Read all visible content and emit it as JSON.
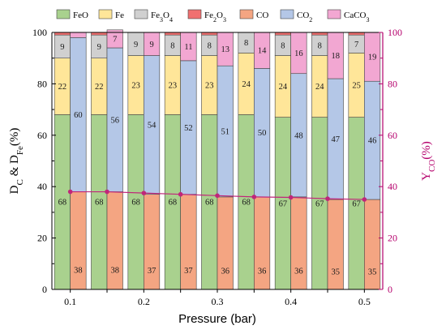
{
  "chart_data": {
    "type": "bar",
    "categories": [
      "0.1",
      "",
      "0.2",
      "",
      "0.3",
      "",
      "0.4",
      "",
      "0.5"
    ],
    "xlabel": "Pressure (bar)",
    "ylabel_left": "D_C & D_Fe(%)",
    "ylabel_right": "Y_CO(%)",
    "ylim_left": [
      0,
      100
    ],
    "ylim_right": [
      0,
      100
    ],
    "left_ticks": [
      "0",
      "20",
      "40",
      "60",
      "80",
      "100"
    ],
    "right_ticks": [
      "0",
      "20",
      "40",
      "60",
      "80",
      "100"
    ],
    "x_ticks": [
      "0.1",
      "0.2",
      "0.3",
      "0.4",
      "0.5"
    ],
    "legend_position": "top",
    "grid": false,
    "legend": [
      {
        "key": "FeO",
        "text": "FeO",
        "sub": ""
      },
      {
        "key": "Fe",
        "text": "Fe",
        "sub": ""
      },
      {
        "key": "Fe3O4",
        "text": "Fe",
        "sub": "3",
        "text2": "O",
        "sub2": "4"
      },
      {
        "key": "Fe2O3",
        "text": "Fe",
        "sub": "2",
        "text2": "O",
        "sub2": "3"
      },
      {
        "key": "CO",
        "text": "CO",
        "sub": ""
      },
      {
        "key": "CO2",
        "text": "CO",
        "sub": "2"
      },
      {
        "key": "CaCO3",
        "text": "CaCO",
        "sub": "3"
      }
    ],
    "colors": {
      "FeO": "#a9d18e",
      "Fe": "#ffe699",
      "Fe3O4": "#d0d0d0",
      "Fe2O3": "#f07070",
      "CO": "#f4a582",
      "CO2": "#b4c7e7",
      "CaCO3": "#f2a7d2",
      "line": "#c0267a",
      "right_axis": "#b5006c"
    },
    "iron_stack": {
      "FeO": [
        68,
        68,
        68,
        68,
        68,
        68,
        67,
        67,
        67
      ],
      "Fe": [
        22,
        22,
        23,
        23,
        23,
        24,
        24,
        24,
        25
      ],
      "Fe3O4": [
        9,
        9,
        9,
        8,
        8,
        8,
        8,
        8,
        7
      ],
      "Fe2O3": [
        1,
        1,
        0,
        1,
        1,
        0,
        1,
        1,
        1
      ]
    },
    "carbon_stack": {
      "CO": [
        38,
        38,
        37,
        37,
        36,
        36,
        36,
        35,
        35
      ],
      "CO2": [
        60,
        56,
        54,
        52,
        51,
        50,
        48,
        47,
        46
      ],
      "CaCO3": [
        2,
        7,
        9,
        11,
        13,
        14,
        16,
        18,
        19
      ]
    },
    "labels": {
      "FeO": [
        "68",
        "68",
        "68",
        "68",
        "68",
        "68",
        "67",
        "67",
        "67"
      ],
      "Fe": [
        "22",
        "22",
        "23",
        "23",
        "23",
        "24",
        "24",
        "24",
        "25"
      ],
      "Fe3O4": [
        "9",
        "9",
        "9",
        "8",
        "8",
        "8",
        "8",
        "8",
        "7"
      ],
      "CO": [
        "38",
        "38",
        "37",
        "37",
        "36",
        "36",
        "36",
        "35",
        "35"
      ],
      "CO2": [
        "60",
        "56",
        "54",
        "52",
        "51",
        "50",
        "48",
        "47",
        "46"
      ],
      "CaCO3": [
        "",
        "7",
        "9",
        "11",
        "13",
        "14",
        "16",
        "18",
        "19"
      ]
    },
    "Y_CO": [
      38,
      38,
      37.5,
      37,
      36.5,
      36,
      35.8,
      35.3,
      35
    ]
  }
}
